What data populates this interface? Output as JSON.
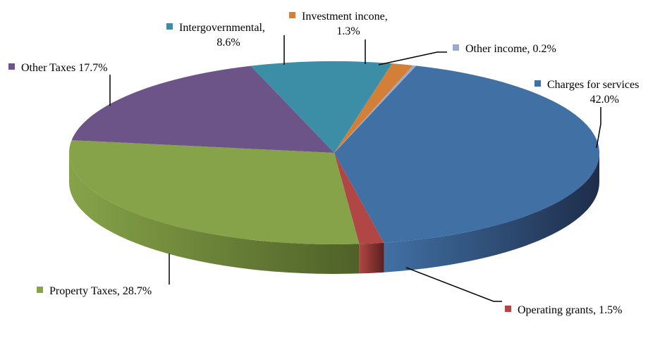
{
  "chart_data": {
    "type": "pie",
    "title": "",
    "slices": [
      {
        "label": "Charges for services",
        "pct_label": "42.0%",
        "value": 42.0,
        "color": "#4170A4",
        "dark": "#1E2D4A"
      },
      {
        "label": "Operating grants,",
        "pct_label": "1.5%",
        "value": 1.5,
        "color": "#B04744",
        "dark": "#5A2020"
      },
      {
        "label": "Property Taxes,",
        "pct_label": "28.7%",
        "value": 28.7,
        "color": "#86A349",
        "dark": "#4F6128"
      },
      {
        "label": "Other Taxes",
        "pct_label": "17.7%",
        "value": 17.7,
        "color": "#6C5388",
        "dark": "#3C2E4D"
      },
      {
        "label": "Intergovernmental,",
        "pct_label": "8.6%",
        "value": 8.6,
        "color": "#3C8EA6",
        "dark": "#1F4D5A"
      },
      {
        "label": "Investment incone,",
        "pct_label": "1.3%",
        "value": 1.3,
        "color": "#D37F38",
        "dark": "#7A461C"
      },
      {
        "label": "Other income,",
        "pct_label": "0.2%",
        "value": 0.2,
        "color": "#96ABCF",
        "dark": "#56627A"
      }
    ],
    "legend": "callout labels"
  }
}
